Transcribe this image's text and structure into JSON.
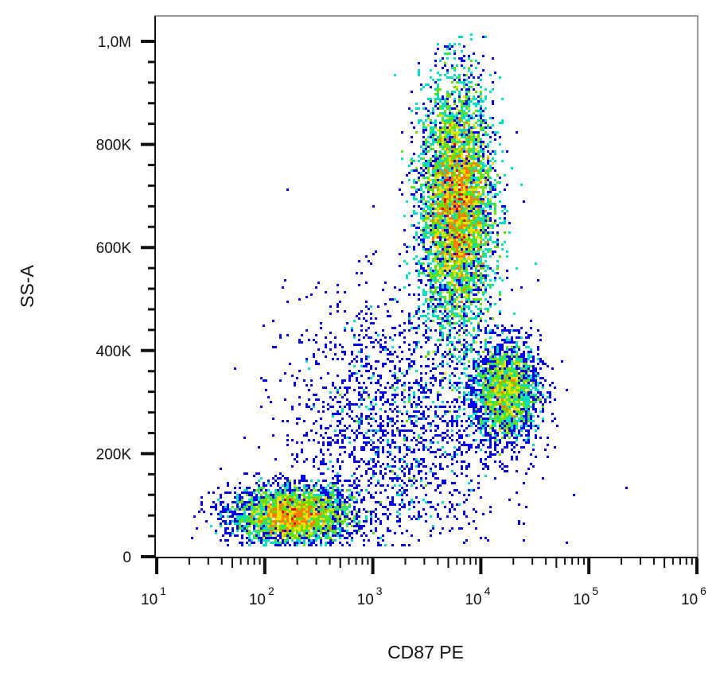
{
  "chart_data": {
    "type": "scatter",
    "plot_style": "flow cytometry density dot plot",
    "xlabel": "CD87 PE",
    "ylabel": "SS-A",
    "x_scale": "log",
    "xlim": [
      10,
      1000000
    ],
    "x_ticks": [
      {
        "value": 10,
        "base": "10",
        "exp": "1"
      },
      {
        "value": 100,
        "base": "10",
        "exp": "2"
      },
      {
        "value": 1000,
        "base": "10",
        "exp": "3"
      },
      {
        "value": 10000,
        "base": "10",
        "exp": "4"
      },
      {
        "value": 100000,
        "base": "10",
        "exp": "5"
      },
      {
        "value": 1000000,
        "base": "10",
        "exp": "6"
      }
    ],
    "y_scale": "linear",
    "ylim": [
      0,
      1050000
    ],
    "y_ticks": [
      {
        "value": 0,
        "label": "0"
      },
      {
        "value": 200000,
        "label": "200K"
      },
      {
        "value": 400000,
        "label": "400K"
      },
      {
        "value": 600000,
        "label": "600K"
      },
      {
        "value": 800000,
        "label": "800K"
      },
      {
        "value": 1000000,
        "label": "1,0M"
      }
    ],
    "grid": false,
    "density_colors": [
      "#0000ee",
      "#00aaff",
      "#00e0c0",
      "#66e000",
      "#f0e000",
      "#ff8000",
      "#ee0000"
    ],
    "populations": [
      {
        "x_center": 180,
        "y_center": 80000,
        "x_spread_decades": 0.28,
        "y_spread": 28000,
        "relative_count": 0.22
      },
      {
        "x_center": 6000,
        "y_center": 680000,
        "x_spread_decades": 0.17,
        "y_spread": 120000,
        "relative_count": 0.52
      },
      {
        "x_center": 17000,
        "y_center": 320000,
        "x_spread_decades": 0.16,
        "y_spread": 50000,
        "relative_count": 0.14
      },
      {
        "x_center": 1600,
        "y_center": 250000,
        "x_spread_decades": 0.5,
        "y_spread": 130000,
        "relative_count": 0.12
      }
    ]
  }
}
